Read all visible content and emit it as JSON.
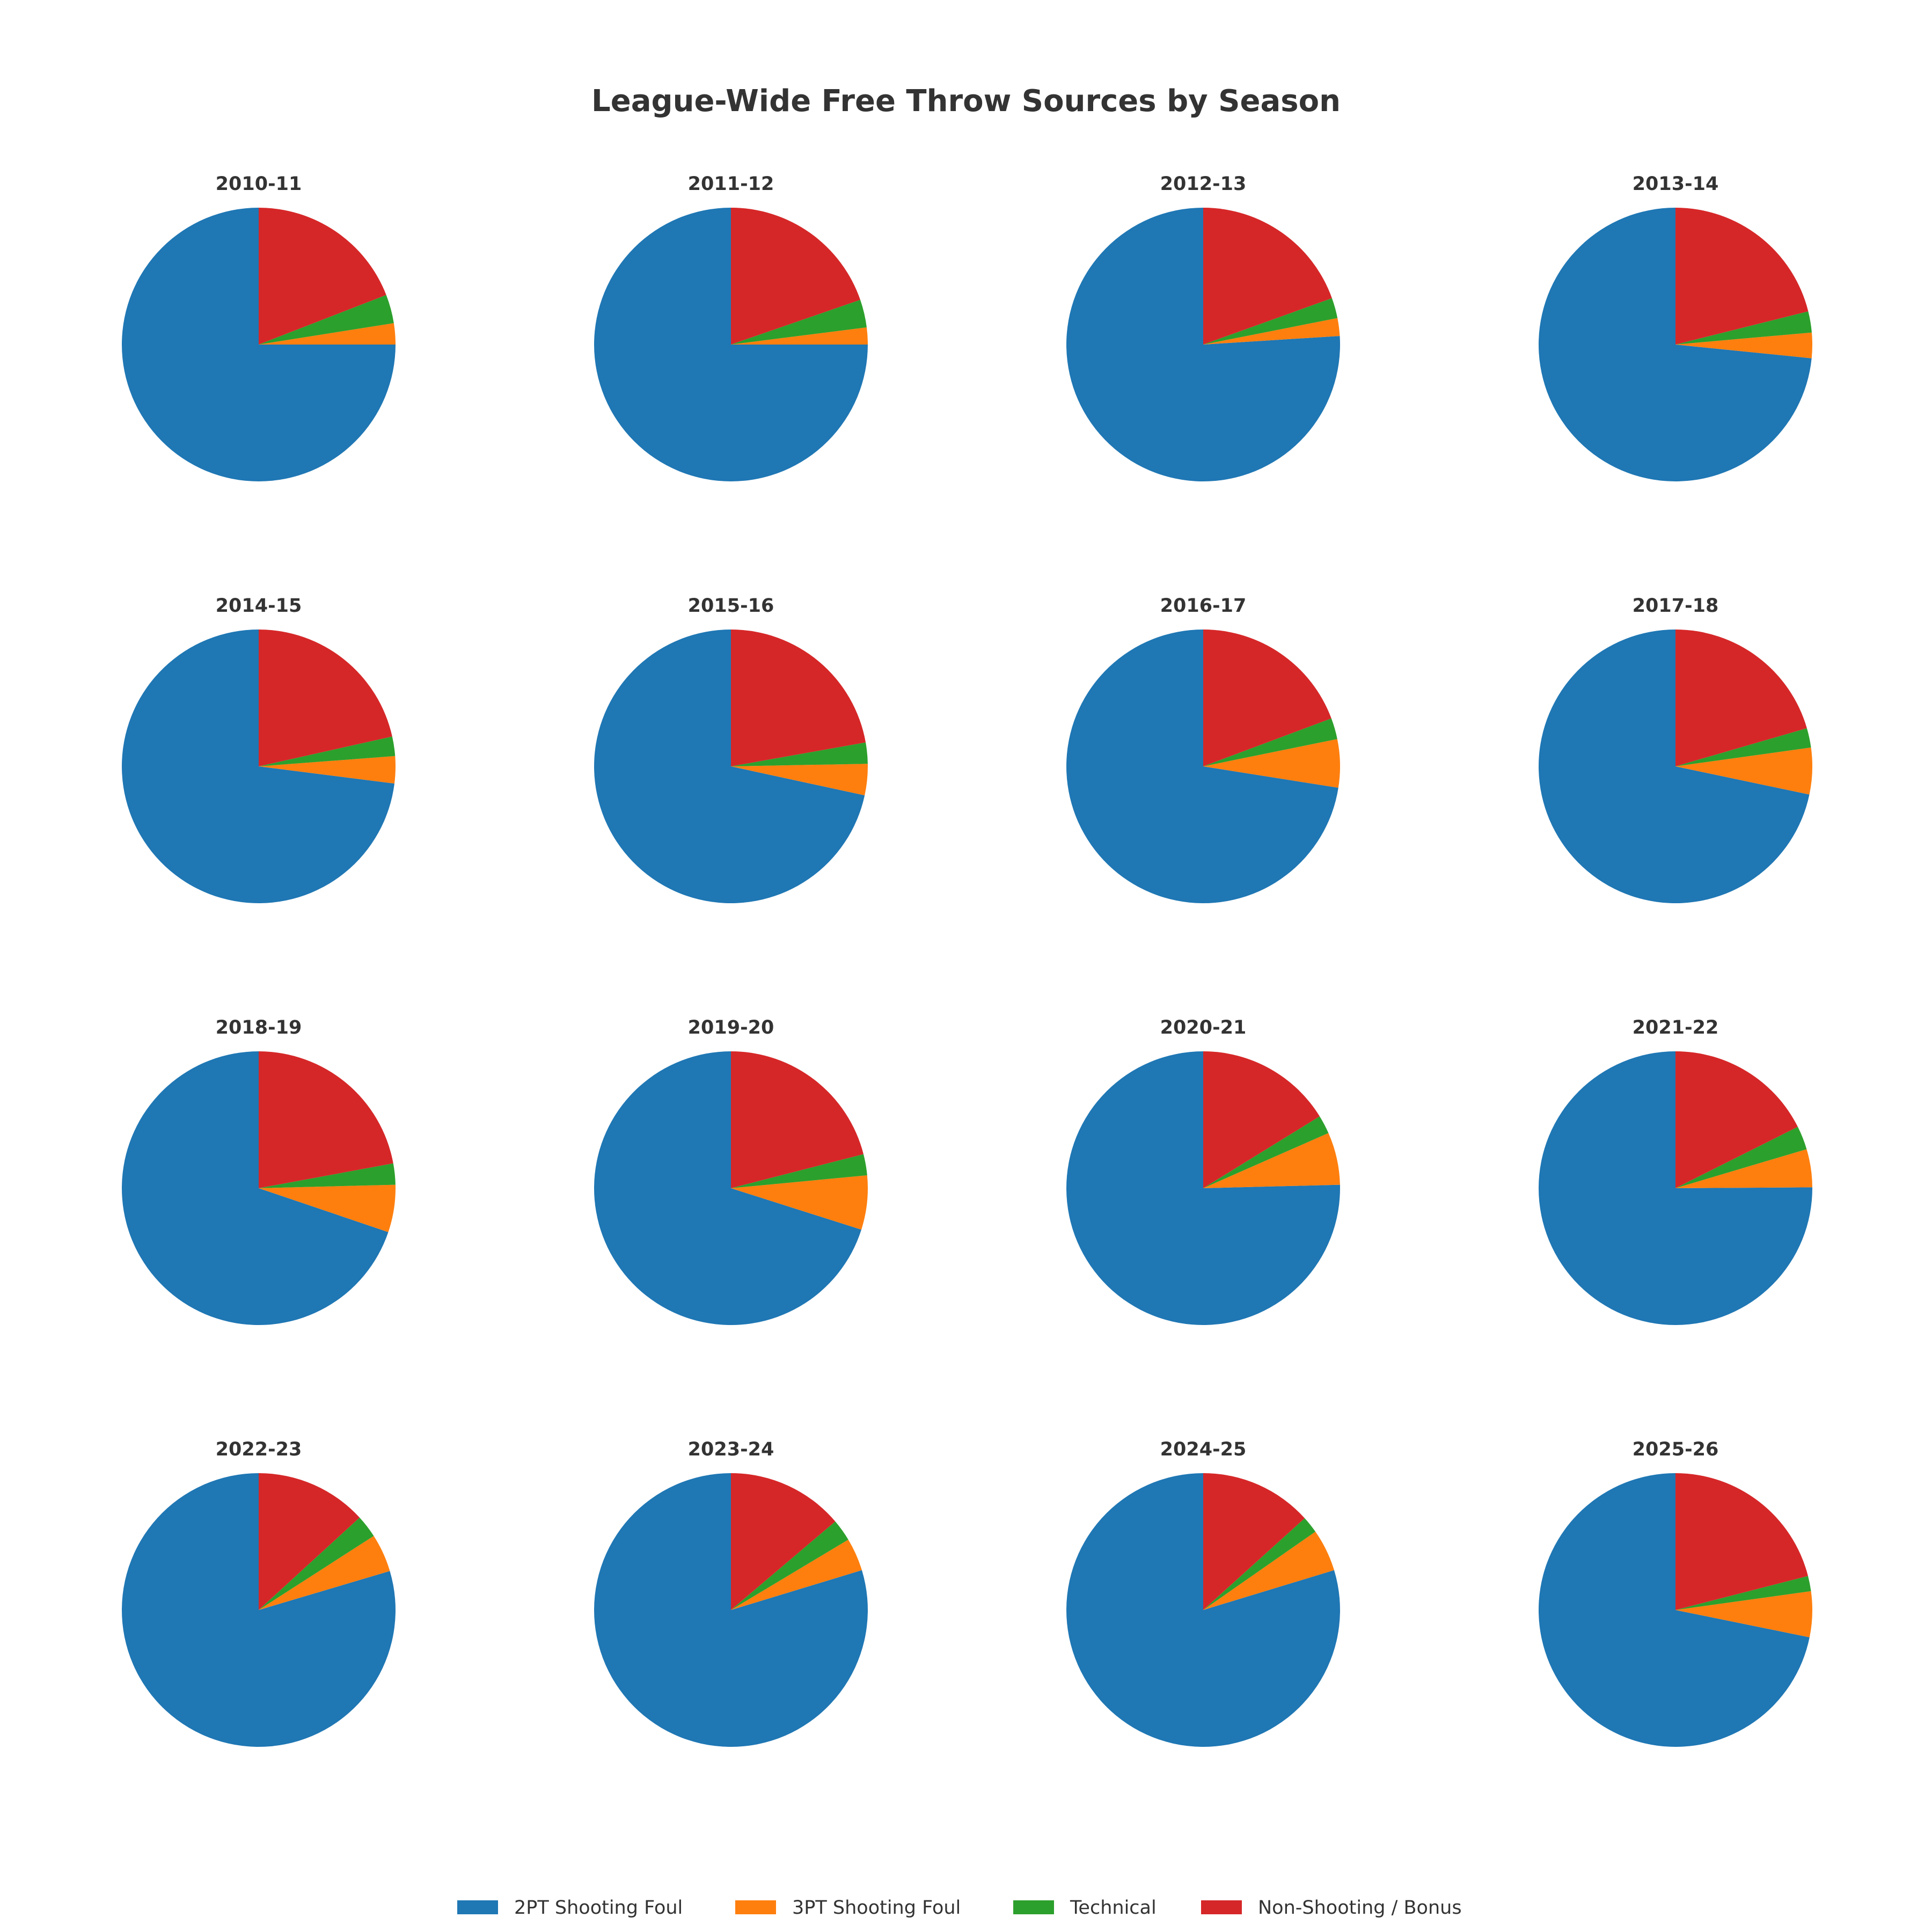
{
  "chart_data": {
    "type": "pie",
    "title": "League-Wide Free Throw Sources by Season",
    "legend_position": "bottom",
    "series": [
      {
        "name": "2PT Shooting Foul",
        "color": "#1f77b4"
      },
      {
        "name": "3PT Shooting Foul",
        "color": "#ff7f0e"
      },
      {
        "name": "Technical",
        "color": "#2ca02c"
      },
      {
        "name": "Non-Shooting / Bonus",
        "color": "#d62728"
      }
    ],
    "pies": [
      {
        "title": "2010-11",
        "values": [
          75.0,
          2.5,
          3.4,
          19.1
        ]
      },
      {
        "title": "2011-12",
        "values": [
          75.0,
          2.0,
          3.3,
          19.7
        ]
      },
      {
        "title": "2012-13",
        "values": [
          76.0,
          2.1,
          2.4,
          19.5
        ]
      },
      {
        "title": "2013-14",
        "values": [
          73.4,
          3.0,
          2.5,
          21.1
        ]
      },
      {
        "title": "2014-15",
        "values": [
          73.0,
          3.2,
          2.3,
          21.5
        ]
      },
      {
        "title": "2015-16",
        "values": [
          71.6,
          3.7,
          2.5,
          22.2
        ]
      },
      {
        "title": "2016-17",
        "values": [
          72.5,
          5.7,
          2.5,
          19.3
        ]
      },
      {
        "title": "2017-18",
        "values": [
          71.7,
          5.5,
          2.3,
          20.5
        ]
      },
      {
        "title": "2018-19",
        "values": [
          69.8,
          5.6,
          2.5,
          22.1
        ]
      },
      {
        "title": "2019-20",
        "values": [
          70.1,
          6.4,
          2.5,
          21.0
        ]
      },
      {
        "title": "2020-21",
        "values": [
          75.4,
          6.2,
          2.2,
          16.2
        ]
      },
      {
        "title": "2021-22",
        "values": [
          75.1,
          4.5,
          2.8,
          17.6
        ]
      },
      {
        "title": "2022-23",
        "values": [
          79.6,
          4.5,
          2.7,
          13.2
        ]
      },
      {
        "title": "2023-24",
        "values": [
          79.7,
          3.9,
          2.6,
          13.8
        ]
      },
      {
        "title": "2024-25",
        "values": [
          79.7,
          5.0,
          2.0,
          13.3
        ]
      },
      {
        "title": "2025-26",
        "values": [
          71.8,
          5.4,
          1.8,
          21.0
        ]
      }
    ]
  }
}
